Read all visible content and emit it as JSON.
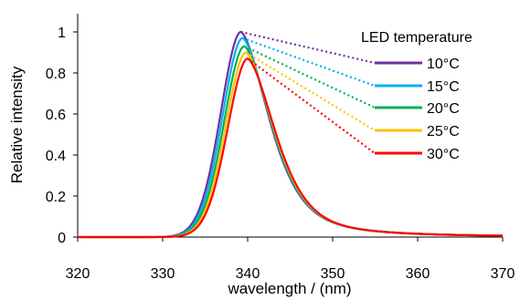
{
  "chart_data": {
    "type": "line",
    "title": "",
    "xlabel": "wavelength / (nm)",
    "ylabel": "Relative intensity",
    "xlim": [
      320,
      370
    ],
    "ylim": [
      0,
      1.1
    ],
    "xticks": [
      320,
      330,
      340,
      350,
      360,
      370
    ],
    "yticks": [
      0,
      0.2,
      0.4,
      0.6,
      0.8,
      1
    ],
    "ytick_labels": [
      "0",
      "0.2",
      "0.4",
      "0.6",
      "0.8",
      "1"
    ],
    "grid": false,
    "legend_title": "LED temperature",
    "legend_placement": "right",
    "series": [
      {
        "name": "10°C",
        "color": "#7030a0",
        "peak_x": 339.2,
        "peak_y": 1.0
      },
      {
        "name": "15°C",
        "color": "#00b0f0",
        "peak_x": 339.4,
        "peak_y": 0.97
      },
      {
        "name": "20°C",
        "color": "#00b050",
        "peak_x": 339.6,
        "peak_y": 0.93
      },
      {
        "name": "25°C",
        "color": "#ffc000",
        "peak_x": 339.8,
        "peak_y": 0.9
      },
      {
        "name": "30°C",
        "color": "#ff0000",
        "peak_x": 340.0,
        "peak_y": 0.87
      }
    ]
  }
}
